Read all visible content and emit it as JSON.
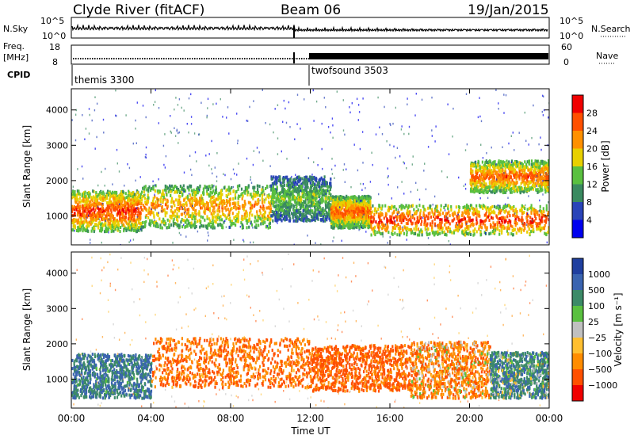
{
  "header": {
    "station": "Clyde River (fitACF)",
    "beam": "Beam 06",
    "date": "19/Jan/2015"
  },
  "panels": {
    "nsky": {
      "label": "N.Sky",
      "right_label": "N.Search",
      "ticks_left": [
        "10^5",
        "10^0"
      ],
      "ticks_right": [
        "10^5",
        "10^0"
      ]
    },
    "freq": {
      "label_1": "Freq.",
      "label_2": "[MHz]",
      "right_label": "Nave",
      "ticks_left": [
        "18",
        "8"
      ],
      "ticks_right": [
        "60",
        "0"
      ]
    },
    "cpid": {
      "label": "CPID",
      "modes": [
        {
          "name": "themis 3300",
          "start_hour": 0
        },
        {
          "name": "twofsound 3503",
          "start_hour": 12
        }
      ]
    }
  },
  "chart_data": [
    {
      "type": "heatmap",
      "title": "",
      "xlabel": "",
      "ylabel": "Slant Range [km]",
      "xlim": [
        0,
        24
      ],
      "ylim": [
        180,
        4600
      ],
      "yticks": [
        "1000",
        "2000",
        "3000",
        "4000"
      ],
      "colorbar_label": "Power [dB]",
      "colorbar_ticks": [
        "4",
        "8",
        "12",
        "16",
        "20",
        "24",
        "28"
      ],
      "colorbar_range": [
        0,
        30
      ],
      "colors": [
        "#0000ee",
        "#2a44b8",
        "#3a8a60",
        "#5ac040",
        "#e8d000",
        "#ff9000",
        "#ff5000",
        "#f00000"
      ],
      "scatter_bands": [
        {
          "t0": 0,
          "t1": 3.5,
          "r0": 600,
          "r1": 1750,
          "power": 26
        },
        {
          "t0": 3.5,
          "t1": 10,
          "r0": 700,
          "r1": 1900,
          "power": 22
        },
        {
          "t0": 10,
          "t1": 13,
          "r0": 900,
          "r1": 2150,
          "power": 14
        },
        {
          "t0": 13,
          "t1": 15,
          "r0": 700,
          "r1": 1600,
          "power": 24
        },
        {
          "t0": 15,
          "t1": 24,
          "r0": 500,
          "r1": 1350,
          "power": 27
        },
        {
          "t0": 20,
          "t1": 24,
          "r0": 1700,
          "r1": 2600,
          "power": 24
        }
      ]
    },
    {
      "type": "heatmap",
      "title": "",
      "xlabel": "Time UT",
      "ylabel": "Slant Range [km]",
      "xlim": [
        0,
        24
      ],
      "ylim": [
        180,
        4600
      ],
      "xticks": [
        "00:00",
        "04:00",
        "08:00",
        "12:00",
        "16:00",
        "20:00",
        "00:00"
      ],
      "yticks": [
        "1000",
        "2000",
        "3000",
        "4000"
      ],
      "colorbar_label": "Velocity [m s⁻¹]",
      "colorbar_ticks": [
        "1000",
        "500",
        "100",
        "25",
        "−25",
        "−100",
        "−500",
        "−1000"
      ],
      "colors": [
        "#1f3f9f",
        "#3a64b0",
        "#3c8a68",
        "#5ac040",
        "#c0c0c0",
        "#ffbf30",
        "#ff8c00",
        "#ff5000",
        "#f00000"
      ],
      "scatter_bands": [
        {
          "t0": 0,
          "t1": 4,
          "r0": 500,
          "r1": 1750,
          "velocity": 300
        },
        {
          "t0": 4,
          "t1": 12,
          "r0": 800,
          "r1": 2200,
          "velocity": -300
        },
        {
          "t0": 12,
          "t1": 17,
          "r0": 700,
          "r1": 2000,
          "velocity": -400
        },
        {
          "t0": 17,
          "t1": 21,
          "r0": 500,
          "r1": 2100,
          "velocity": -200
        },
        {
          "t0": 21,
          "t1": 24,
          "r0": 500,
          "r1": 1800,
          "velocity": 200
        }
      ]
    }
  ]
}
